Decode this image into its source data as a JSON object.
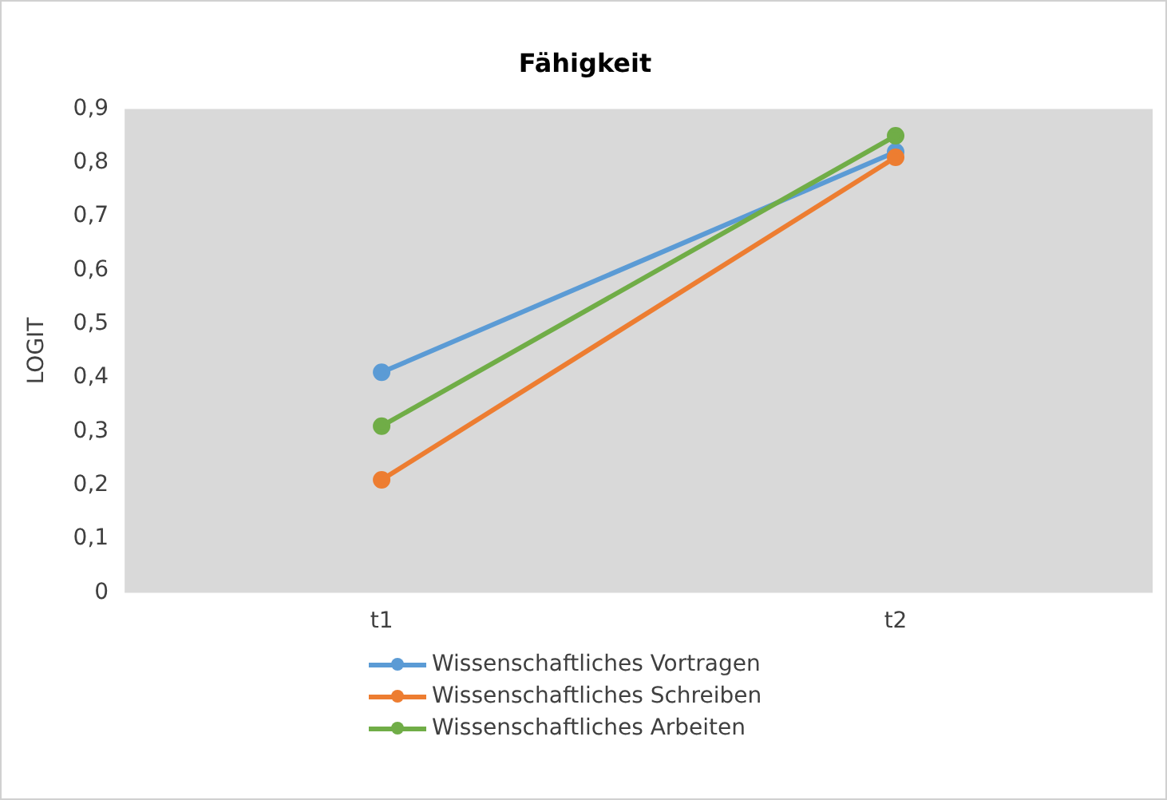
{
  "chart_data": {
    "type": "line",
    "title": "Fähigkeit",
    "ylabel": "LOGIT",
    "categories": [
      "t1",
      "t2"
    ],
    "series": [
      {
        "name": "Wissenschaftliches Vortragen",
        "color": "#5b9bd5",
        "values": [
          0.41,
          0.82
        ]
      },
      {
        "name": "Wissenschaftliches Schreiben",
        "color": "#ed7d31",
        "values": [
          0.21,
          0.81
        ]
      },
      {
        "name": "Wissenschaftliches Arbeiten",
        "color": "#70ad47",
        "values": [
          0.31,
          0.85
        ]
      }
    ],
    "ylim": [
      0,
      0.9
    ],
    "yticks": [
      {
        "value": 0,
        "label": "0"
      },
      {
        "value": 0.1,
        "label": "0,1"
      },
      {
        "value": 0.2,
        "label": "0,2"
      },
      {
        "value": 0.3,
        "label": "0,3"
      },
      {
        "value": 0.4,
        "label": "0,4"
      },
      {
        "value": 0.5,
        "label": "0,5"
      },
      {
        "value": 0.6,
        "label": "0,6"
      },
      {
        "value": 0.7,
        "label": "0,7"
      },
      {
        "value": 0.8,
        "label": "0,8"
      },
      {
        "value": 0.9,
        "label": "0,9"
      }
    ],
    "grid": false,
    "legend": "bottom",
    "marker": "circle",
    "line_style": "solid"
  }
}
